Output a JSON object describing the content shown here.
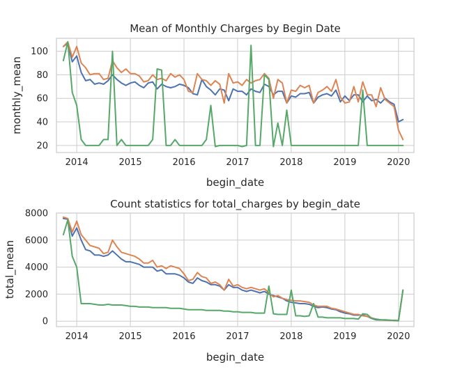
{
  "chart_data": [
    {
      "type": "line",
      "title": "Mean of Monthly Charges by Begin Date",
      "xlabel": "begin_date",
      "ylabel": "monthly_mean",
      "x_ticks": [
        "2014",
        "2015",
        "2016",
        "2017",
        "2018",
        "2019",
        "2020"
      ],
      "y_ticks": [
        20,
        40,
        60,
        80,
        100
      ],
      "xlim": [
        "2013-08-15",
        "2020-04-15"
      ],
      "ylim": [
        14,
        111
      ],
      "grid": true,
      "colors": [
        "#4c72b0",
        "#dd8452",
        "#55a868"
      ],
      "x": [
        "2013-10",
        "2013-11",
        "2013-12",
        "2014-01",
        "2014-02",
        "2014-03",
        "2014-04",
        "2014-05",
        "2014-06",
        "2014-07",
        "2014-08",
        "2014-09",
        "2014-10",
        "2014-11",
        "2014-12",
        "2015-01",
        "2015-02",
        "2015-03",
        "2015-04",
        "2015-05",
        "2015-06",
        "2015-07",
        "2015-08",
        "2015-09",
        "2015-10",
        "2015-11",
        "2015-12",
        "2016-01",
        "2016-02",
        "2016-03",
        "2016-04",
        "2016-05",
        "2016-06",
        "2016-07",
        "2016-08",
        "2016-09",
        "2016-10",
        "2016-11",
        "2016-12",
        "2017-01",
        "2017-02",
        "2017-03",
        "2017-04",
        "2017-05",
        "2017-06",
        "2017-07",
        "2017-08",
        "2017-09",
        "2017-10",
        "2017-11",
        "2017-12",
        "2018-01",
        "2018-02",
        "2018-03",
        "2018-04",
        "2018-05",
        "2018-06",
        "2018-07",
        "2018-08",
        "2018-09",
        "2018-10",
        "2018-11",
        "2018-12",
        "2019-01",
        "2019-02",
        "2019-03",
        "2019-04",
        "2019-05",
        "2019-06",
        "2019-07",
        "2019-08",
        "2019-09",
        "2019-10",
        "2019-11",
        "2019-12",
        "2020-01",
        "2020-02"
      ],
      "series": [
        {
          "values": [
            104,
            107,
            91,
            96,
            82,
            75,
            76,
            72,
            73,
            72,
            75,
            80,
            76,
            73,
            71,
            73,
            74,
            71,
            69,
            73,
            74,
            68,
            72,
            70,
            69,
            70,
            72,
            71,
            69,
            64,
            63,
            76,
            70,
            67,
            63,
            68,
            67,
            58,
            68,
            66,
            66,
            63,
            68,
            66,
            65,
            72,
            70,
            63,
            66,
            66,
            56,
            62,
            61,
            64,
            64,
            65,
            56,
            61,
            63,
            64,
            62,
            67,
            57,
            62,
            58,
            63,
            63,
            57,
            62,
            58,
            59,
            56,
            60,
            57,
            55,
            40,
            42
          ]
        },
        {
          "values": [
            104,
            108,
            95,
            104,
            90,
            86,
            80,
            81,
            81,
            76,
            77,
            92,
            86,
            82,
            85,
            81,
            81,
            79,
            74,
            75,
            80,
            76,
            77,
            75,
            81,
            78,
            80,
            76,
            66,
            65,
            81,
            76,
            75,
            71,
            75,
            72,
            56,
            81,
            73,
            74,
            71,
            76,
            73,
            75,
            76,
            81,
            77,
            60,
            76,
            73,
            56,
            67,
            66,
            71,
            69,
            71,
            56,
            65,
            67,
            70,
            66,
            76,
            61,
            56,
            57,
            70,
            57,
            74,
            63,
            63,
            53,
            69,
            59,
            56,
            53,
            33,
            25
          ]
        },
        {
          "values": [
            92,
            108,
            65,
            54,
            25,
            20,
            20,
            20,
            20,
            25,
            25,
            100,
            20,
            25,
            20,
            20,
            20,
            20,
            20,
            20,
            25,
            85,
            84,
            20,
            20,
            25,
            20,
            20,
            20,
            20,
            20,
            20,
            25,
            54,
            19,
            20,
            20,
            20,
            20,
            20,
            19,
            20,
            105,
            20,
            20,
            80,
            76,
            19,
            39,
            20,
            50,
            20,
            20,
            20,
            20,
            20,
            20,
            20,
            20,
            20,
            20,
            20,
            20,
            20,
            20,
            20,
            20,
            67,
            20,
            20,
            20,
            20,
            20,
            20,
            20,
            20,
            20
          ]
        }
      ]
    },
    {
      "type": "line",
      "title": "Count statistics for total_charges by begin_date",
      "xlabel": "begin_date",
      "ylabel": "total_mean",
      "x_ticks": [
        "2014",
        "2015",
        "2016",
        "2017",
        "2018",
        "2019",
        "2020"
      ],
      "y_ticks": [
        0,
        2000,
        4000,
        6000,
        8000
      ],
      "xlim": [
        "2013-08-15",
        "2020-04-15"
      ],
      "ylim": [
        -400,
        8000
      ],
      "grid": true,
      "colors": [
        "#4c72b0",
        "#dd8452",
        "#55a868"
      ],
      "x": [
        "2013-10",
        "2013-11",
        "2013-12",
        "2014-01",
        "2014-02",
        "2014-03",
        "2014-04",
        "2014-05",
        "2014-06",
        "2014-07",
        "2014-08",
        "2014-09",
        "2014-10",
        "2014-11",
        "2014-12",
        "2015-01",
        "2015-02",
        "2015-03",
        "2015-04",
        "2015-05",
        "2015-06",
        "2015-07",
        "2015-08",
        "2015-09",
        "2015-10",
        "2015-11",
        "2015-12",
        "2016-01",
        "2016-02",
        "2016-03",
        "2016-04",
        "2016-05",
        "2016-06",
        "2016-07",
        "2016-08",
        "2016-09",
        "2016-10",
        "2016-11",
        "2016-12",
        "2017-01",
        "2017-02",
        "2017-03",
        "2017-04",
        "2017-05",
        "2017-06",
        "2017-07",
        "2017-08",
        "2017-09",
        "2017-10",
        "2017-11",
        "2017-12",
        "2018-01",
        "2018-02",
        "2018-03",
        "2018-04",
        "2018-05",
        "2018-06",
        "2018-07",
        "2018-08",
        "2018-09",
        "2018-10",
        "2018-11",
        "2018-12",
        "2019-01",
        "2019-02",
        "2019-03",
        "2019-04",
        "2019-05",
        "2019-06",
        "2019-07",
        "2019-08",
        "2019-09",
        "2019-10",
        "2019-11",
        "2019-12",
        "2020-01",
        "2020-02"
      ],
      "series": [
        {
          "values": [
            7600,
            7550,
            6300,
            6900,
            6000,
            5300,
            5200,
            4900,
            4900,
            4800,
            4900,
            5200,
            4900,
            4600,
            4400,
            4400,
            4300,
            4200,
            4000,
            4000,
            4000,
            3700,
            3800,
            3500,
            3500,
            3500,
            3400,
            3200,
            2900,
            2800,
            3200,
            3000,
            2900,
            2700,
            2700,
            2600,
            2300,
            2700,
            2500,
            2500,
            2300,
            2200,
            2300,
            2200,
            2100,
            2200,
            2000,
            1900,
            1800,
            1700,
            1500,
            1400,
            1350,
            1300,
            1300,
            1250,
            1100,
            1000,
            1050,
            1000,
            900,
            850,
            700,
            600,
            550,
            450,
            450,
            450,
            350,
            200,
            100,
            90,
            80,
            70,
            60,
            50,
            2300
          ]
        },
        {
          "values": [
            7700,
            7600,
            6600,
            7400,
            6400,
            6000,
            5600,
            5500,
            5400,
            5000,
            5100,
            6000,
            5500,
            5100,
            5000,
            4900,
            4800,
            4600,
            4300,
            4300,
            4500,
            4000,
            4100,
            3900,
            4100,
            4000,
            3900,
            3500,
            3000,
            3100,
            3600,
            3300,
            3200,
            2800,
            2900,
            2700,
            2300,
            3100,
            2600,
            2700,
            2500,
            2400,
            2500,
            2400,
            2300,
            2400,
            2100,
            1800,
            1900,
            1700,
            1600,
            1550,
            1500,
            1500,
            1450,
            1400,
            1200,
            1100,
            1100,
            1100,
            950,
            900,
            800,
            700,
            600,
            500,
            500,
            400,
            350,
            250,
            150,
            100,
            80,
            60,
            50,
            30,
            2300
          ]
        },
        {
          "values": [
            6400,
            7500,
            4800,
            4000,
            1300,
            1300,
            1300,
            1250,
            1200,
            1200,
            1250,
            1200,
            1200,
            1200,
            1150,
            1100,
            1100,
            1050,
            1050,
            1050,
            1000,
            1000,
            1000,
            1000,
            950,
            950,
            950,
            900,
            850,
            850,
            850,
            850,
            800,
            800,
            800,
            800,
            750,
            750,
            700,
            700,
            650,
            650,
            650,
            600,
            600,
            600,
            2600,
            550,
            500,
            500,
            500,
            2300,
            400,
            400,
            350,
            400,
            1300,
            300,
            300,
            250,
            250,
            250,
            250,
            200,
            200,
            200,
            150,
            550,
            500,
            200,
            150,
            100,
            100,
            80,
            60,
            40,
            2300
          ]
        }
      ]
    }
  ]
}
